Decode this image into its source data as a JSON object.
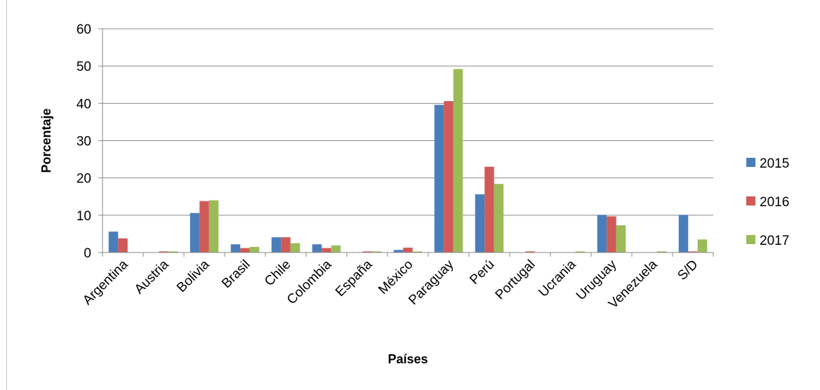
{
  "chart_data": {
    "type": "bar",
    "categories": [
      "Argentina",
      "Austria",
      "Bolivia",
      "Brasil",
      "Chile",
      "Colombia",
      "España",
      "México",
      "Paraguay",
      "Perú",
      "Portugal",
      "Ucrania",
      "Uruguay",
      "Venezuela",
      "S/D"
    ],
    "series": [
      {
        "name": "2015",
        "color": "#4a7ebb",
        "values": [
          5.6,
          0.0,
          10.6,
          2.2,
          4.1,
          2.2,
          0.0,
          0.7,
          39.6,
          15.6,
          0.0,
          0.0,
          10.1,
          0.0,
          10.1
        ]
      },
      {
        "name": "2016",
        "color": "#d05a57",
        "values": [
          3.8,
          0.3,
          13.8,
          1.2,
          4.1,
          1.2,
          0.3,
          1.3,
          40.6,
          23.0,
          0.3,
          0.0,
          9.7,
          0.0,
          0.3
        ]
      },
      {
        "name": "2017",
        "color": "#9bbb59",
        "values": [
          0.0,
          0.3,
          14.0,
          1.5,
          2.5,
          1.9,
          0.3,
          0.3,
          49.2,
          18.4,
          0.0,
          0.3,
          7.3,
          0.3,
          3.5
        ]
      }
    ],
    "xlabel": "Países",
    "ylabel": "Porcentaje",
    "ylim": [
      0,
      60
    ],
    "yticks": [
      "0",
      "10",
      "20",
      "30",
      "40",
      "50",
      "60"
    ],
    "grid": true,
    "legend_position": "right"
  }
}
